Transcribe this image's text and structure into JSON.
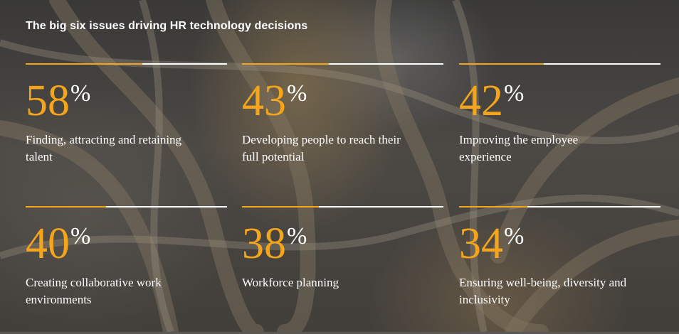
{
  "chart_data": {
    "type": "table",
    "title": "The big six issues driving HR technology decisions",
    "unit": "%",
    "items": [
      {
        "value": 58,
        "label": "Finding, attracting and retaining talent"
      },
      {
        "value": 43,
        "label": "Developing people to reach their full potential"
      },
      {
        "value": 42,
        "label": "Improving the employee experience"
      },
      {
        "value": 40,
        "label": "Creating collaborative work environments"
      },
      {
        "value": 38,
        "label": "Workforce planning"
      },
      {
        "value": 34,
        "label": "Ensuring well-being, diversity and inclusivity"
      }
    ]
  },
  "colors": {
    "accent": "#f5a51c",
    "text": "#ffffff"
  }
}
